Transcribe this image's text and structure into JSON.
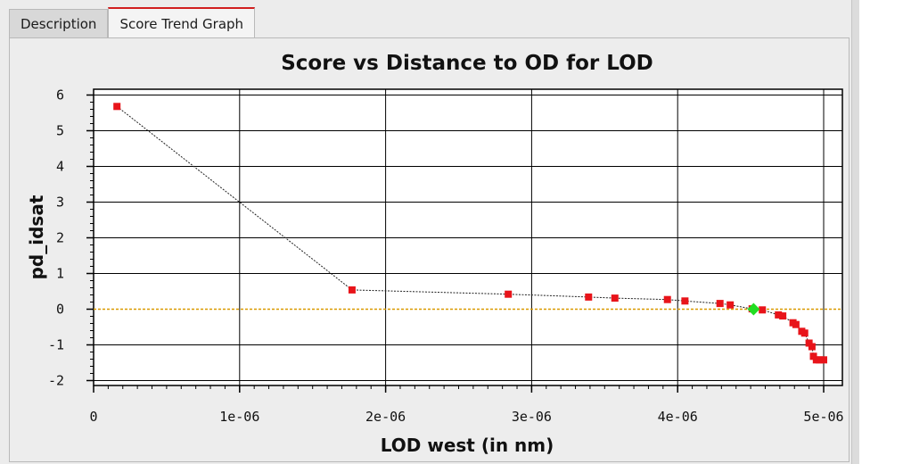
{
  "tabs": [
    {
      "label": "Description",
      "active": false
    },
    {
      "label": "Score Trend Graph",
      "active": true
    }
  ],
  "colors": {
    "tab_accent": "#d11f1f",
    "point": "#e8141a",
    "highlight_point": "#22dd22",
    "zero_line": "#d99a00",
    "connector": "#222222"
  },
  "chart_data": {
    "type": "scatter",
    "title": "Score vs Distance to OD for LOD",
    "xlabel": "LOD west (in nm)",
    "ylabel": "pd_idsat",
    "xlim": [
      0,
      5.05e-06
    ],
    "ylim": [
      -2.2,
      6.2
    ],
    "xticks": [
      0,
      1e-06,
      2e-06,
      3e-06,
      4e-06,
      5e-06
    ],
    "xtick_labels": [
      "0",
      "1e-06",
      "2e-06",
      "3e-06",
      "4e-06",
      "5e-06"
    ],
    "yticks": [
      -2,
      -1,
      0,
      1,
      2,
      3,
      4,
      5,
      6
    ],
    "ytick_labels": [
      "-2",
      "-1",
      "0",
      "1",
      "2",
      "3",
      "4",
      "5",
      "6"
    ],
    "grid": true,
    "reference_line_y": 0,
    "series": [
      {
        "x": [
          1.6e-07,
          1.77e-06,
          2.84e-06,
          3.39e-06,
          3.57e-06,
          3.93e-06,
          4.05e-06,
          4.29e-06,
          4.36e-06,
          4.51e-06,
          4.58e-06,
          4.69e-06,
          4.72e-06,
          4.79e-06,
          4.81e-06,
          4.85e-06,
          4.87e-06,
          4.9e-06,
          4.92e-06,
          4.93e-06,
          4.95e-06,
          4.97e-06,
          5e-06
        ],
        "y": [
          5.68,
          0.54,
          0.42,
          0.34,
          0.31,
          0.27,
          0.23,
          0.16,
          0.12,
          0.01,
          -0.02,
          -0.16,
          -0.19,
          -0.38,
          -0.43,
          -0.62,
          -0.67,
          -0.95,
          -1.05,
          -1.32,
          -1.42,
          -1.42,
          -1.42
        ]
      }
    ],
    "highlight_point": {
      "x": 4.52e-06,
      "y": 0.0
    }
  }
}
